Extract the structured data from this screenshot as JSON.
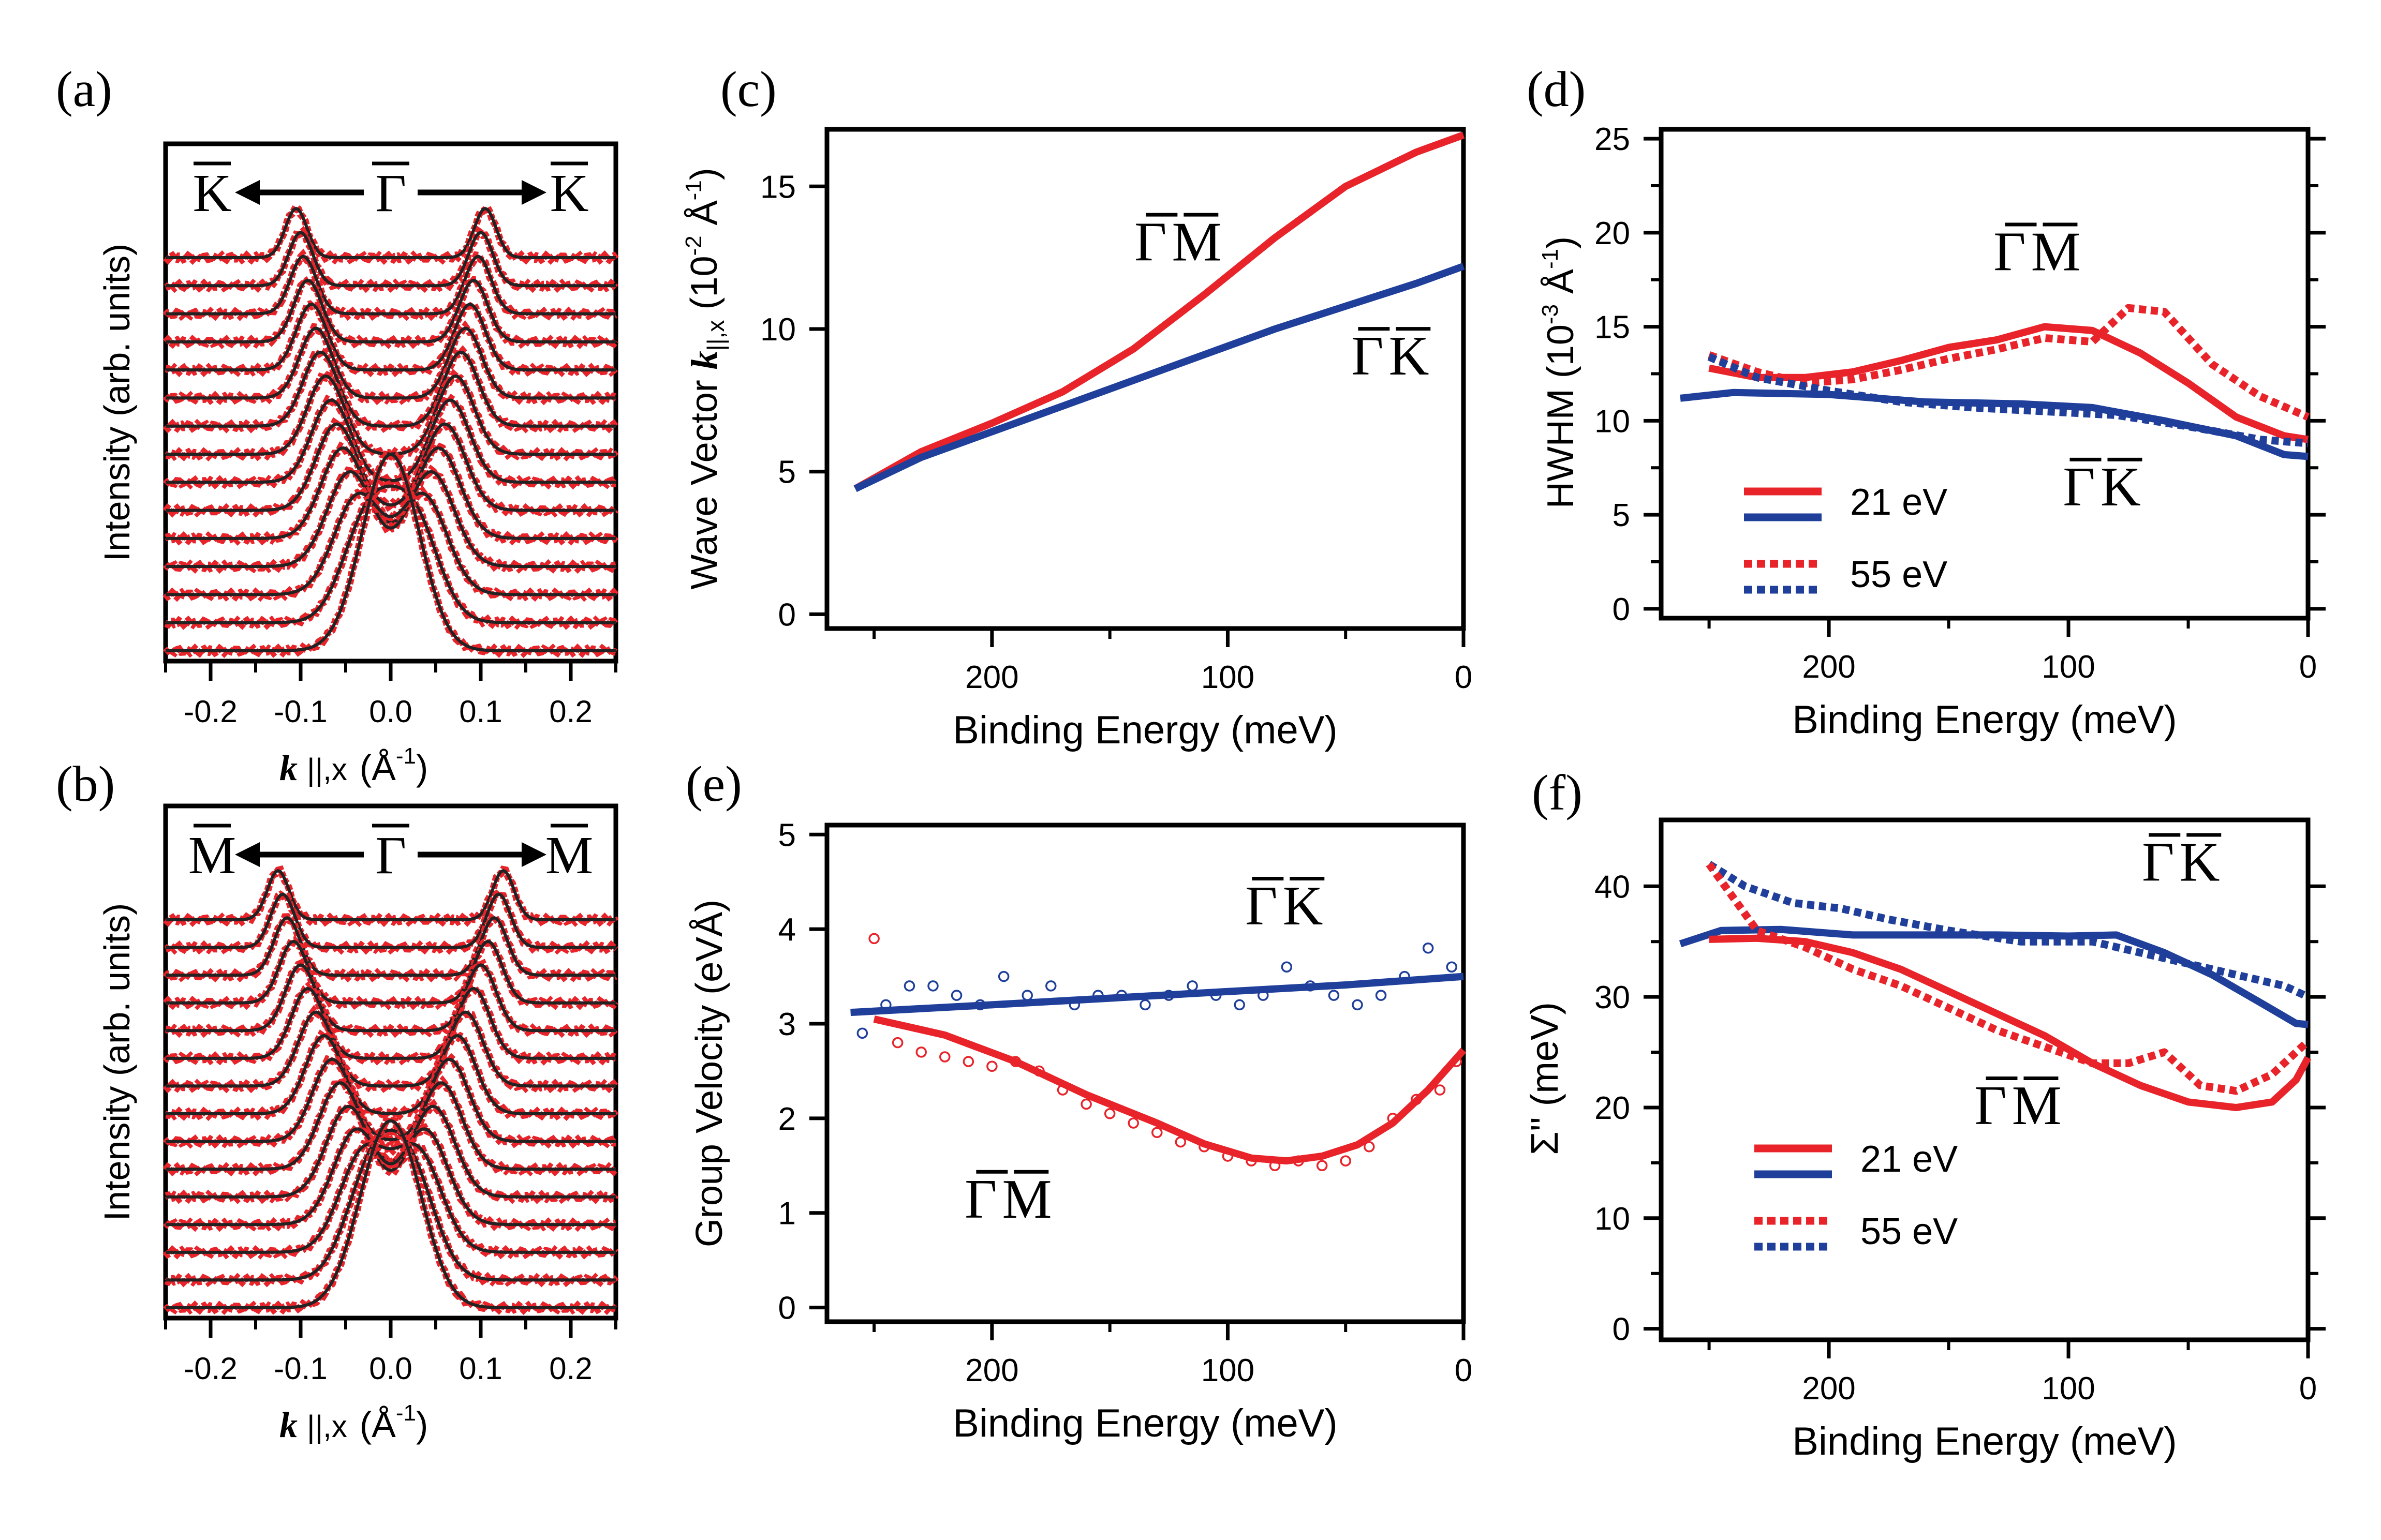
{
  "figure": {
    "panel_labels": [
      "(a)",
      "(b)",
      "(c)",
      "(d)",
      "(e)",
      "(f)"
    ]
  },
  "colors": {
    "red": "#e8232a",
    "blue": "#1f3f9a",
    "black": "#000000",
    "fit": "#222222"
  },
  "chart_data": [
    {
      "id": "a",
      "type": "line",
      "xlabel": "k ||,x (Å-1)",
      "xlabel_parts": {
        "k": "k",
        "sub": "||,x",
        "unit": "(Å",
        "sup": "-1",
        "close": ")"
      },
      "ylabel": "Intensity (arb. units)",
      "xlim": [
        -0.25,
        0.25
      ],
      "xticks": [
        -0.2,
        -0.1,
        0.0,
        0.1,
        0.2
      ],
      "xtick_labels": [
        "-0.2",
        "-0.1",
        "0.0",
        "0.1",
        "0.2"
      ],
      "direction": {
        "left": "K",
        "center": "Γ",
        "right": "K"
      },
      "curves": 15,
      "peak_positions": [
        0.105,
        0.1,
        0.097,
        0.092,
        0.088,
        0.083,
        0.078,
        0.072,
        0.066,
        0.06,
        0.053,
        0.045,
        0.036,
        0.025,
        0.012
      ],
      "series": [
        {
          "name": "data",
          "color": "#e8232a"
        },
        {
          "name": "fit",
          "color": "#222222"
        }
      ]
    },
    {
      "id": "b",
      "type": "line",
      "xlabel": "k ||,x (Å-1)",
      "xlabel_parts": {
        "k": "k",
        "sub": "||,x",
        "unit": "(Å",
        "sup": "-1",
        "close": ")"
      },
      "ylabel": "Intensity (arb. units)",
      "xlim": [
        -0.25,
        0.25
      ],
      "xticks": [
        -0.2,
        -0.1,
        0.0,
        0.1,
        0.2
      ],
      "xtick_labels": [
        "-0.2",
        "-0.1",
        "0.0",
        "0.1",
        "0.2"
      ],
      "direction": {
        "left": "M",
        "center": "Γ",
        "right": "M"
      },
      "curves": 15,
      "peak_positions": [
        0.125,
        0.12,
        0.115,
        0.108,
        0.1,
        0.092,
        0.083,
        0.074,
        0.065,
        0.056,
        0.047,
        0.038,
        0.03,
        0.022,
        0.015
      ],
      "series": [
        {
          "name": "data",
          "color": "#e8232a"
        },
        {
          "name": "fit",
          "color": "#222222"
        }
      ]
    },
    {
      "id": "c",
      "type": "line",
      "xlabel": "Binding Energy (meV)",
      "ylabel": "Wave Vector k||,x (10-2 Å-1)",
      "ylabel_parts": {
        "pre": "Wave Vector",
        "k": "k",
        "sub": "||,x",
        "unit1": "(10",
        "sup1": "-2",
        "unit2": "Å",
        "sup2": "-1",
        "close": ")"
      },
      "xlim": [
        270,
        0
      ],
      "ylim": [
        -0.5,
        17
      ],
      "xticks": [
        200,
        100,
        0
      ],
      "xtick_labels": [
        "200",
        "100",
        "0"
      ],
      "yticks": [
        0,
        5,
        10,
        15
      ],
      "ytick_labels": [
        "0",
        "5",
        "10",
        "15"
      ],
      "series": [
        {
          "name": "ΓM",
          "color": "#e8232a",
          "x": [
            258,
            230,
            200,
            170,
            140,
            110,
            80,
            50,
            20,
            0
          ],
          "y": [
            4.4,
            5.7,
            6.7,
            7.8,
            9.3,
            11.2,
            13.2,
            15.0,
            16.2,
            16.8
          ]
        },
        {
          "name": "ΓK",
          "color": "#1f3f9a",
          "x": [
            258,
            230,
            200,
            170,
            140,
            110,
            80,
            50,
            20,
            0
          ],
          "y": [
            4.4,
            5.5,
            6.4,
            7.3,
            8.2,
            9.1,
            10.0,
            10.8,
            11.6,
            12.2
          ]
        }
      ],
      "annotations": [
        {
          "text": "ΓM",
          "at_x": 120,
          "at_y": 12.4
        },
        {
          "text": "ΓK",
          "at_x": 30,
          "at_y": 8.4
        }
      ]
    },
    {
      "id": "d",
      "type": "line",
      "xlabel": "Binding Energy (meV)",
      "ylabel": "HWHM (10-3 Å-1)",
      "ylabel_parts": {
        "pre": "HWHM",
        "unit1": "(10",
        "sup1": "-3",
        "unit2": "Å",
        "sup2": "-1",
        "close": ")"
      },
      "xlim": [
        270,
        0
      ],
      "ylim": [
        -0.5,
        25.5
      ],
      "xticks": [
        200,
        100,
        0
      ],
      "xtick_labels": [
        "200",
        "100",
        "0"
      ],
      "yticks": [
        0,
        5,
        10,
        15,
        20,
        25
      ],
      "ytick_labels": [
        "0",
        "5",
        "10",
        "15",
        "20",
        "25"
      ],
      "series": [
        {
          "name": "ΓM 21 eV",
          "color": "#e8232a",
          "dash": false,
          "x": [
            250,
            230,
            210,
            190,
            170,
            150,
            130,
            110,
            90,
            70,
            50,
            30,
            10,
            0
          ],
          "y": [
            12.8,
            12.3,
            12.3,
            12.6,
            13.2,
            13.9,
            14.3,
            15.0,
            14.8,
            13.6,
            12.0,
            10.2,
            9.2,
            9.0
          ]
        },
        {
          "name": "ΓM 55 eV",
          "color": "#e8232a",
          "dash": true,
          "x": [
            250,
            230,
            210,
            190,
            170,
            150,
            130,
            110,
            90,
            75,
            60,
            40,
            20,
            0
          ],
          "y": [
            13.5,
            12.6,
            12.0,
            12.2,
            12.7,
            13.3,
            13.8,
            14.4,
            14.2,
            16.0,
            15.8,
            13.0,
            11.3,
            10.2
          ]
        },
        {
          "name": "ΓK 21 eV",
          "color": "#1f3f9a",
          "dash": false,
          "x": [
            262,
            240,
            200,
            160,
            120,
            90,
            60,
            30,
            10,
            0
          ],
          "y": [
            11.2,
            11.5,
            11.4,
            11.0,
            10.9,
            10.7,
            10.0,
            9.2,
            8.2,
            8.1
          ]
        },
        {
          "name": "ΓK 55 eV",
          "color": "#1f3f9a",
          "dash": true,
          "x": [
            250,
            230,
            200,
            170,
            140,
            110,
            80,
            50,
            20,
            0
          ],
          "y": [
            13.4,
            12.3,
            11.6,
            11.0,
            10.7,
            10.5,
            10.3,
            9.7,
            9.0,
            8.8
          ]
        }
      ],
      "legend": {
        "items": [
          "21 eV",
          "55 eV"
        ],
        "placement": "bottom-left"
      },
      "annotations": [
        {
          "text": "ΓM",
          "at_x": 112,
          "at_y": 18.0
        },
        {
          "text": "ΓK",
          "at_x": 85,
          "at_y": 5.5
        }
      ]
    },
    {
      "id": "e",
      "type": "scatter",
      "xlabel": "Binding Energy (meV)",
      "ylabel": "Group Velocity (eVÅ)",
      "xlim": [
        270,
        0
      ],
      "ylim": [
        -0.15,
        5.1
      ],
      "xticks": [
        200,
        100,
        0
      ],
      "xtick_labels": [
        "200",
        "100",
        "0"
      ],
      "yticks": [
        0,
        1,
        2,
        3,
        4,
        5
      ],
      "ytick_labels": [
        "0",
        "1",
        "2",
        "3",
        "4",
        "5"
      ],
      "series": [
        {
          "name": "ΓK fit",
          "color": "#1f3f9a",
          "kind": "line",
          "x": [
            260,
            200,
            150,
            100,
            50,
            0
          ],
          "y": [
            3.12,
            3.2,
            3.27,
            3.34,
            3.41,
            3.5
          ]
        },
        {
          "name": "ΓM fit",
          "color": "#e8232a",
          "kind": "line",
          "x": [
            250,
            220,
            190,
            160,
            130,
            110,
            90,
            75,
            60,
            45,
            30,
            15,
            0
          ],
          "y": [
            3.05,
            2.88,
            2.6,
            2.25,
            1.95,
            1.73,
            1.58,
            1.55,
            1.6,
            1.72,
            1.95,
            2.3,
            2.72
          ]
        },
        {
          "name": "ΓK data",
          "color": "#1f3f9a",
          "kind": "points",
          "x": [
            255,
            245,
            235,
            225,
            215,
            205,
            195,
            185,
            175,
            165,
            155,
            145,
            135,
            125,
            115,
            105,
            95,
            85,
            75,
            65,
            55,
            45,
            35,
            25,
            15,
            5
          ],
          "y": [
            2.9,
            3.2,
            3.4,
            3.4,
            3.3,
            3.2,
            3.5,
            3.3,
            3.4,
            3.2,
            3.3,
            3.3,
            3.2,
            3.3,
            3.4,
            3.3,
            3.2,
            3.3,
            3.6,
            3.4,
            3.3,
            3.2,
            3.3,
            3.5,
            3.8,
            3.6
          ]
        },
        {
          "name": "ΓM data",
          "color": "#e8232a",
          "kind": "points",
          "x": [
            250,
            240,
            230,
            220,
            210,
            200,
            190,
            180,
            170,
            160,
            150,
            140,
            130,
            120,
            110,
            100,
            90,
            80,
            70,
            60,
            50,
            40,
            30,
            20,
            10,
            3
          ],
          "y": [
            3.9,
            2.8,
            2.7,
            2.65,
            2.6,
            2.55,
            2.6,
            2.5,
            2.3,
            2.15,
            2.05,
            1.95,
            1.85,
            1.75,
            1.7,
            1.6,
            1.55,
            1.5,
            1.55,
            1.5,
            1.55,
            1.7,
            2.0,
            2.2,
            2.3,
            2.6
          ]
        }
      ],
      "annotations": [
        {
          "text": "ΓK",
          "at_x": 75,
          "at_y": 4.05
        },
        {
          "text": "ΓM",
          "at_x": 192,
          "at_y": 0.95
        }
      ]
    },
    {
      "id": "f",
      "type": "line",
      "xlabel": "Binding Energy (meV)",
      "ylabel": "Σ'' (meV)",
      "xlim": [
        270,
        0
      ],
      "ylim": [
        -1,
        46
      ],
      "xticks": [
        200,
        100,
        0
      ],
      "xtick_labels": [
        "200",
        "100",
        "0"
      ],
      "yticks": [
        0,
        10,
        20,
        30,
        40
      ],
      "ytick_labels": [
        "0",
        "10",
        "20",
        "30",
        "40"
      ],
      "series": [
        {
          "name": "ΓK 21 eV",
          "color": "#1f3f9a",
          "dash": false,
          "x": [
            262,
            245,
            220,
            190,
            160,
            130,
            100,
            80,
            60,
            40,
            20,
            5,
            0
          ],
          "y": [
            34.8,
            36.0,
            36.1,
            35.6,
            35.6,
            35.6,
            35.5,
            35.6,
            34.0,
            32.0,
            29.5,
            27.6,
            27.5
          ]
        },
        {
          "name": "ΓK 55 eV",
          "color": "#1f3f9a",
          "dash": true,
          "x": [
            250,
            235,
            215,
            195,
            175,
            150,
            120,
            90,
            70,
            50,
            30,
            10,
            0
          ],
          "y": [
            42.0,
            40.0,
            38.5,
            38.0,
            37.0,
            36.0,
            35.0,
            35.0,
            34.0,
            33.0,
            32.0,
            31.0,
            30.0
          ]
        },
        {
          "name": "ΓM 21 eV",
          "color": "#e8232a",
          "dash": false,
          "x": [
            250,
            230,
            210,
            190,
            170,
            150,
            130,
            110,
            90,
            70,
            50,
            30,
            15,
            5,
            0
          ],
          "y": [
            35.2,
            35.3,
            35.0,
            34.0,
            32.5,
            30.5,
            28.5,
            26.5,
            24.0,
            22.0,
            20.5,
            20.0,
            20.5,
            22.5,
            24.5
          ]
        },
        {
          "name": "ΓM 55 eV",
          "color": "#e8232a",
          "dash": true,
          "x": [
            250,
            230,
            210,
            190,
            170,
            150,
            130,
            110,
            90,
            75,
            60,
            45,
            30,
            15,
            0
          ],
          "y": [
            42.0,
            36.0,
            34.5,
            32.5,
            31.0,
            29.0,
            27.0,
            25.5,
            24.0,
            24.0,
            25.0,
            22.0,
            21.5,
            23.0,
            26.0
          ]
        }
      ],
      "legend": {
        "items": [
          "21 eV",
          "55 eV"
        ],
        "placement": "bottom-left"
      },
      "annotations": [
        {
          "text": "ΓK",
          "at_x": 52,
          "at_y": 40.5
        },
        {
          "text": "ΓM",
          "at_x": 120,
          "at_y": 18.5
        }
      ]
    }
  ]
}
